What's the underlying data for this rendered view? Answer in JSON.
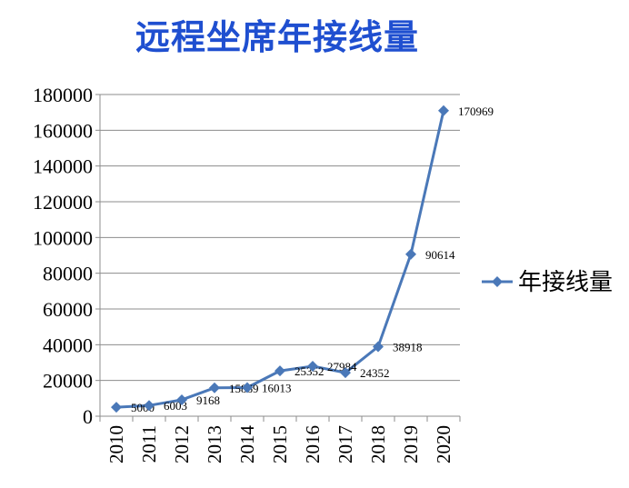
{
  "chart_data": {
    "type": "line",
    "title": "远程坐席年接线量",
    "xlabel": "",
    "ylabel": "",
    "categories": [
      "2010",
      "2011",
      "2012",
      "2013",
      "2014",
      "2015",
      "2016",
      "2017",
      "2018",
      "2019",
      "2020"
    ],
    "series": [
      {
        "name": "年接线量",
        "values": [
          5000,
          6003,
          9168,
          15869,
          16013,
          25352,
          27984,
          24352,
          38918,
          90614,
          170969
        ],
        "data_labels": [
          "5000",
          "6003",
          "9168",
          "15869",
          "16013",
          "25352",
          "27984",
          "24352",
          "38918",
          "90614",
          "170969"
        ],
        "color": "#4a78b8",
        "marker": "diamond"
      }
    ],
    "ylim": [
      0,
      180000
    ],
    "yticks": [
      0,
      20000,
      40000,
      60000,
      80000,
      100000,
      120000,
      140000,
      160000,
      180000
    ],
    "ytick_labels": [
      "0",
      "20000",
      "40000",
      "60000",
      "80000",
      "100000",
      "120000",
      "140000",
      "160000",
      "180000"
    ],
    "grid": true,
    "legend": "right"
  }
}
